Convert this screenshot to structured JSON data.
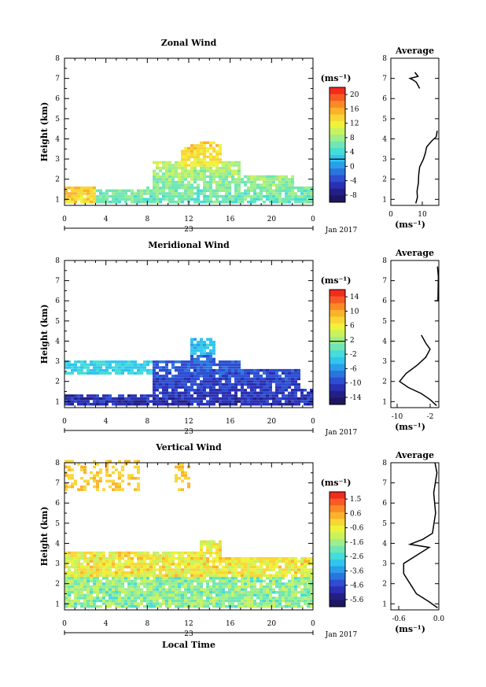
{
  "chart_data": [
    {
      "type": "heatmap",
      "title": "Zonal Wind",
      "ylabel": "Height (km)",
      "y_ticks": [
        "1",
        "2",
        "3",
        "4",
        "5",
        "6",
        "7",
        "8"
      ],
      "x_ticks": [
        "0",
        "4",
        "8",
        "12",
        "16",
        "20",
        "0"
      ],
      "date_label": "23",
      "month_label": "Jan 2017",
      "colorbar_unit": "(ms⁻¹)",
      "colorbar_ticks": [
        "20",
        "16",
        "12",
        "8",
        "4",
        "0",
        "-4",
        "-8"
      ],
      "clim": [
        -10,
        22
      ],
      "profile": {
        "title": "Average",
        "x_ticks": [
          "0",
          "10"
        ],
        "xlim": [
          0,
          15
        ],
        "xlabel": "(ms⁻¹)",
        "points": [
          [
            7.8,
            0.8
          ],
          [
            8.3,
            1.1
          ],
          [
            8.2,
            1.4
          ],
          [
            8.6,
            1.8
          ],
          [
            8.7,
            2.2
          ],
          [
            9.0,
            2.6
          ],
          [
            10.2,
            3.0
          ],
          [
            10.8,
            3.3
          ],
          [
            11.2,
            3.6
          ],
          [
            12.8,
            3.9
          ],
          [
            14.2,
            4.1
          ],
          [
            14.5,
            4.4
          ]
        ],
        "points_upper": [
          [
            9.0,
            6.5
          ],
          [
            8.0,
            6.8
          ],
          [
            7.2,
            6.9
          ],
          [
            6.0,
            7.0
          ],
          [
            8.5,
            7.1
          ],
          [
            7.5,
            7.3
          ]
        ]
      }
    },
    {
      "type": "heatmap",
      "title": "Meridional Wind",
      "ylabel": "Height (km)",
      "y_ticks": [
        "1",
        "2",
        "3",
        "4",
        "5",
        "6",
        "7",
        "8"
      ],
      "x_ticks": [
        "0",
        "4",
        "8",
        "12",
        "16",
        "20",
        "0"
      ],
      "date_label": "23",
      "month_label": "Jan 2017",
      "colorbar_unit": "(ms⁻¹)",
      "colorbar_ticks": [
        "14",
        "10",
        "6",
        "2",
        "-2",
        "-6",
        "-10",
        "-14"
      ],
      "clim": [
        -16,
        16
      ],
      "profile": {
        "title": "Average",
        "x_ticks": [
          "-10",
          "-2"
        ],
        "xlim": [
          -12,
          -1
        ],
        "xlabel": "(ms⁻¹)",
        "points": [
          [
            -1.5,
            0.8
          ],
          [
            -3,
            1.1
          ],
          [
            -5,
            1.4
          ],
          [
            -8,
            1.7
          ],
          [
            -10,
            2.0
          ],
          [
            -8.5,
            2.4
          ],
          [
            -6,
            2.8
          ],
          [
            -4,
            3.2
          ],
          [
            -3,
            3.6
          ],
          [
            -4,
            3.9
          ],
          [
            -5,
            4.3
          ]
        ],
        "points_upper": [
          [
            -2,
            6.0
          ],
          [
            -1.2,
            6.0
          ],
          [
            -1.1,
            7.2
          ],
          [
            -1.3,
            7.7
          ]
        ]
      }
    },
    {
      "type": "heatmap",
      "title": "Vertical Wind",
      "xlabel": "Local Time",
      "ylabel": "Height (km)",
      "y_ticks": [
        "1",
        "2",
        "3",
        "4",
        "5",
        "6",
        "7",
        "8"
      ],
      "x_ticks": [
        "0",
        "4",
        "8",
        "12",
        "16",
        "20",
        "0"
      ],
      "date_label": "23",
      "month_label": "Jan 2017",
      "colorbar_unit": "(ms⁻¹)",
      "colorbar_ticks": [
        "1.5",
        "0.6",
        "-0.6",
        "-1.6",
        "-2.6",
        "-3.6",
        "-4.6",
        "-5.6"
      ],
      "clim": [
        -6.0,
        2.0
      ],
      "profile": {
        "title": "Average",
        "x_ticks": [
          "-0.6",
          "0.0"
        ],
        "xlim": [
          -0.75,
          0.0
        ],
        "xlabel": "(ms⁻¹)",
        "points": [
          [
            -0.02,
            0.8
          ],
          [
            -0.15,
            1.1
          ],
          [
            -0.35,
            1.5
          ],
          [
            -0.45,
            2.0
          ],
          [
            -0.55,
            2.5
          ],
          [
            -0.55,
            3.0
          ],
          [
            -0.3,
            3.5
          ],
          [
            -0.15,
            3.8
          ],
          [
            -0.45,
            3.95
          ],
          [
            -0.25,
            4.2
          ],
          [
            -0.1,
            4.5
          ],
          [
            -0.05,
            5.5
          ],
          [
            -0.08,
            6.5
          ],
          [
            -0.03,
            7.5
          ],
          [
            -0.06,
            8.0
          ]
        ]
      }
    }
  ]
}
